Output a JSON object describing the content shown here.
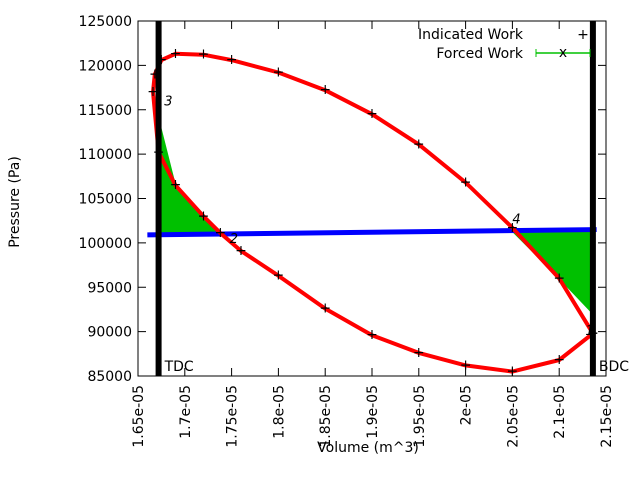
{
  "chart_data": {
    "type": "line",
    "title": "",
    "xlabel": "Volume (m^3)",
    "ylabel": "Pressure (Pa)",
    "xlim": [
      1.65e-05,
      2.15e-05
    ],
    "ylim": [
      85000,
      125000
    ],
    "x_ticks": [
      "1.65e-05",
      "1.7e-05",
      "1.75e-05",
      "1.8e-05",
      "1.85e-05",
      "1.9e-05",
      "1.95e-05",
      "2e-05",
      "2.05e-05",
      "2.1e-05",
      "2.15e-05"
    ],
    "y_ticks": [
      "85000",
      "90000",
      "95000",
      "100000",
      "105000",
      "110000",
      "115000",
      "120000",
      "125000"
    ],
    "legend_position": "top-right",
    "series": [
      {
        "name": "Indicated Work",
        "color": "#ff0000",
        "marker": "+",
        "closed": true,
        "x": [
          2.136e-05,
          2.1e-05,
          2.05e-05,
          2e-05,
          1.95e-05,
          1.9e-05,
          1.85e-05,
          1.8e-05,
          1.76e-05,
          1.738e-05,
          1.72e-05,
          1.69e-05,
          1.672e-05,
          1.666e-05,
          1.668e-05,
          1.675e-05,
          1.69e-05,
          1.72e-05,
          1.75e-05,
          1.8e-05,
          1.85e-05,
          1.9e-05,
          1.95e-05,
          2e-05,
          2.05e-05,
          2.1e-05,
          2.136e-05
        ],
        "y": [
          89800,
          86800,
          85500,
          86200,
          87600,
          89600,
          92600,
          96300,
          99100,
          101100,
          103000,
          106500,
          110200,
          117000,
          119000,
          120600,
          121300,
          121200,
          120600,
          119200,
          117200,
          114500,
          111100,
          106800,
          101700,
          96000,
          89800
        ]
      },
      {
        "name": "Forced Work",
        "color": "#00c000",
        "marker": "x",
        "baseline": {
          "color": "#0000ff",
          "x": [
            1.66e-05,
            2.14e-05
          ],
          "y": [
            100900,
            101500
          ]
        },
        "regions": [
          {
            "x": [
              1.672e-05,
              1.69e-05,
              1.72e-05,
              1.738e-05
            ],
            "y": [
              114000,
              106500,
              103000,
              101100
            ]
          },
          {
            "x": [
              2.05e-05,
              2.1e-05,
              2.136e-05
            ],
            "y": [
              101300,
              96000,
              92000
            ]
          }
        ]
      }
    ],
    "vertical_markers": [
      {
        "label": "TDC",
        "x": 1.672e-05
      },
      {
        "label": "BDC",
        "x": 2.136e-05
      }
    ],
    "annotations": [
      {
        "text": "1",
        "x": 2.128e-05,
        "y": 89600
      },
      {
        "text": "2",
        "x": 1.748e-05,
        "y": 100000
      },
      {
        "text": "3",
        "x": 1.678e-05,
        "y": 115500
      },
      {
        "text": "4",
        "x": 2.05e-05,
        "y": 102200
      }
    ]
  }
}
